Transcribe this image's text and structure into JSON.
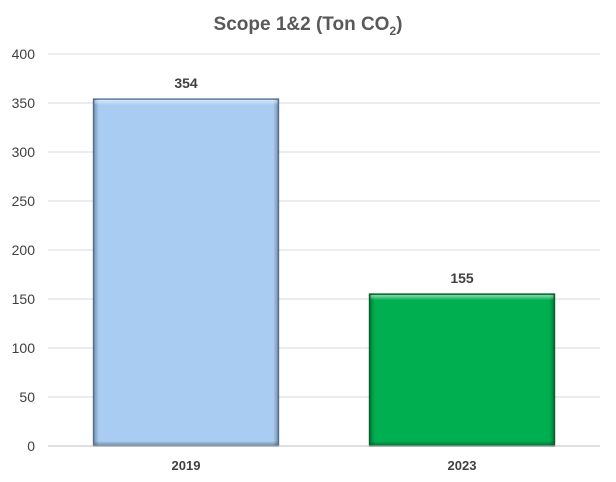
{
  "chart_data": {
    "type": "bar",
    "title": "Scope 1&2 (Ton CO",
    "title_subscript": "2",
    "title_suffix": ")",
    "categories": [
      "2019",
      "2023"
    ],
    "values": [
      354,
      155
    ],
    "data_labels": [
      "354",
      "155"
    ],
    "bar_colors": [
      "#a9cdf2",
      "#00b050"
    ],
    "bar_edge_colors": [
      "#5f7ea8",
      "#0a6b32"
    ],
    "ylim": [
      0,
      400
    ],
    "yticks": [
      0,
      50,
      100,
      150,
      200,
      250,
      300,
      350,
      400
    ],
    "grid": true,
    "legend": false,
    "xlabel": "",
    "ylabel": ""
  }
}
